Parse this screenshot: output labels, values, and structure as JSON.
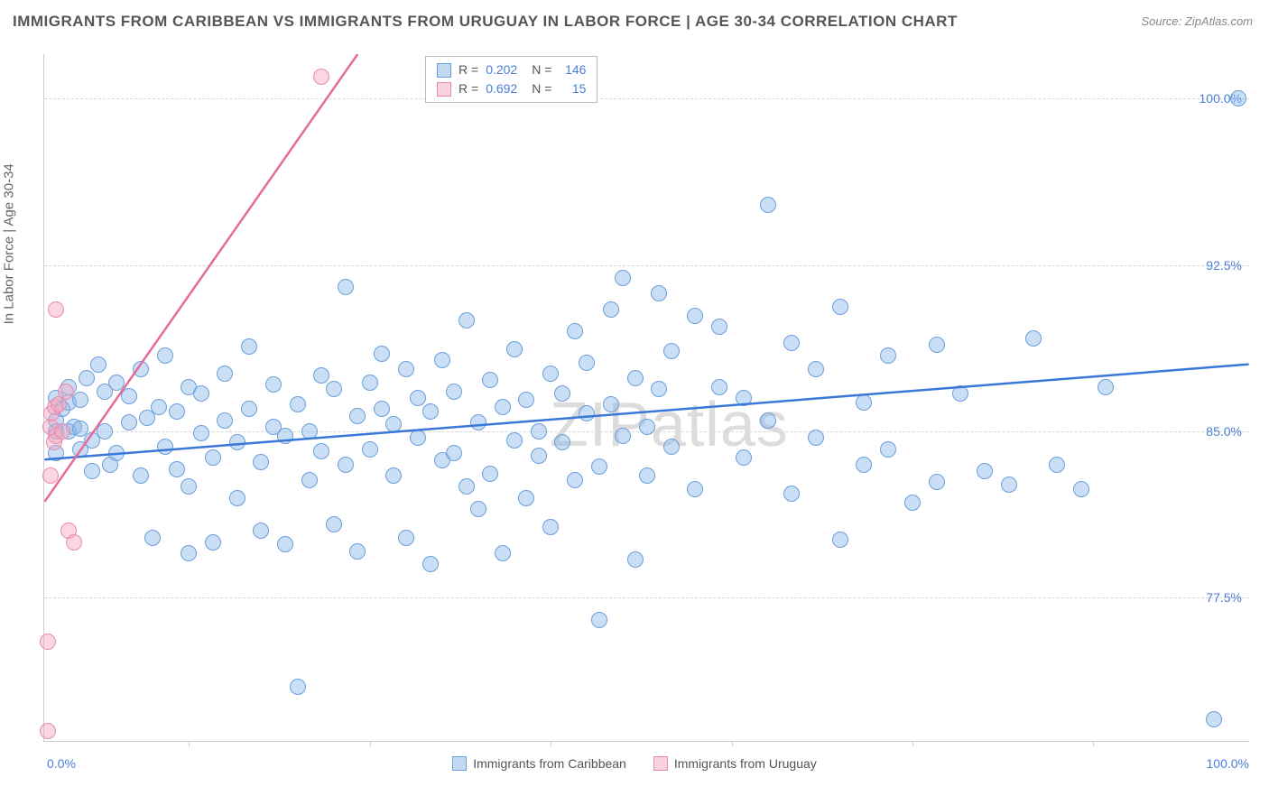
{
  "title": "IMMIGRANTS FROM CARIBBEAN VS IMMIGRANTS FROM URUGUAY IN LABOR FORCE | AGE 30-34 CORRELATION CHART",
  "source": "Source: ZipAtlas.com",
  "watermark": "ZIPatlas",
  "yaxis_label": "In Labor Force | Age 30-34",
  "chart": {
    "type": "scatter",
    "background_color": "#ffffff",
    "grid_color": "#d8d8d8",
    "text_color": "#555555",
    "value_color": "#4a7fd8",
    "xlim": [
      0,
      100
    ],
    "ylim": [
      71,
      102
    ],
    "xtick_positions": [
      12,
      27,
      42,
      57,
      72,
      87
    ],
    "xtick_labels_shown": {
      "left": "0.0%",
      "right": "100.0%"
    },
    "yticks": [
      {
        "value": 77.5,
        "label": "77.5%"
      },
      {
        "value": 85.0,
        "label": "85.0%"
      },
      {
        "value": 92.5,
        "label": "92.5%"
      },
      {
        "value": 100.0,
        "label": "100.0%"
      }
    ],
    "series": [
      {
        "name": "Immigrants from Caribbean",
        "color": "#89b5e8",
        "border_color": "#6aa0db",
        "line_color": "#3a78d8",
        "marker_size": 18,
        "R": "0.202",
        "N": "146",
        "trend": {
          "x1": 0,
          "y1": 83.7,
          "x2": 100,
          "y2": 88.0
        },
        "points": [
          [
            1,
            85.5
          ],
          [
            1,
            86.5
          ],
          [
            1,
            85
          ],
          [
            1,
            84
          ],
          [
            1.5,
            86
          ],
          [
            2,
            85
          ],
          [
            2,
            87
          ],
          [
            2,
            86.3
          ],
          [
            2.5,
            85.2
          ],
          [
            3,
            86.4
          ],
          [
            3,
            85.1
          ],
          [
            3,
            84.2
          ],
          [
            3.5,
            87.4
          ],
          [
            4,
            83.2
          ],
          [
            4,
            84.6
          ],
          [
            4.5,
            88
          ],
          [
            5,
            85
          ],
          [
            5,
            86.8
          ],
          [
            5.5,
            83.5
          ],
          [
            6,
            87.2
          ],
          [
            6,
            84
          ],
          [
            7,
            85.4
          ],
          [
            7,
            86.6
          ],
          [
            8,
            87.8
          ],
          [
            8,
            83
          ],
          [
            8.5,
            85.6
          ],
          [
            9,
            80.2
          ],
          [
            9.5,
            86.1
          ],
          [
            10,
            84.3
          ],
          [
            10,
            88.4
          ],
          [
            11,
            83.3
          ],
          [
            11,
            85.9
          ],
          [
            12,
            87
          ],
          [
            12,
            82.5
          ],
          [
            12,
            79.5
          ],
          [
            13,
            84.9
          ],
          [
            13,
            86.7
          ],
          [
            14,
            80
          ],
          [
            14,
            83.8
          ],
          [
            15,
            85.5
          ],
          [
            15,
            87.6
          ],
          [
            16,
            82
          ],
          [
            16,
            84.5
          ],
          [
            17,
            86
          ],
          [
            17,
            88.8
          ],
          [
            18,
            83.6
          ],
          [
            18,
            80.5
          ],
          [
            19,
            85.2
          ],
          [
            19,
            87.1
          ],
          [
            20,
            79.9
          ],
          [
            20,
            84.8
          ],
          [
            21,
            73.5
          ],
          [
            21,
            86.2
          ],
          [
            22,
            82.8
          ],
          [
            22,
            85
          ],
          [
            23,
            87.5
          ],
          [
            23,
            84.1
          ],
          [
            24,
            80.8
          ],
          [
            24,
            86.9
          ],
          [
            25,
            83.5
          ],
          [
            25,
            91.5
          ],
          [
            26,
            85.7
          ],
          [
            26,
            79.6
          ],
          [
            27,
            84.2
          ],
          [
            27,
            87.2
          ],
          [
            28,
            86
          ],
          [
            28,
            88.5
          ],
          [
            29,
            83
          ],
          [
            29,
            85.3
          ],
          [
            30,
            80.2
          ],
          [
            30,
            87.8
          ],
          [
            31,
            84.7
          ],
          [
            31,
            86.5
          ],
          [
            32,
            79
          ],
          [
            32,
            85.9
          ],
          [
            33,
            83.7
          ],
          [
            33,
            88.2
          ],
          [
            34,
            86.8
          ],
          [
            34,
            84
          ],
          [
            35,
            90
          ],
          [
            35,
            82.5
          ],
          [
            36,
            85.4
          ],
          [
            36,
            81.5
          ],
          [
            37,
            87.3
          ],
          [
            37,
            83.1
          ],
          [
            38,
            86.1
          ],
          [
            38,
            79.5
          ],
          [
            39,
            84.6
          ],
          [
            39,
            88.7
          ],
          [
            40,
            86.4
          ],
          [
            40,
            82
          ],
          [
            41,
            85
          ],
          [
            41,
            83.9
          ],
          [
            42,
            87.6
          ],
          [
            42,
            80.7
          ],
          [
            43,
            86.7
          ],
          [
            43,
            84.5
          ],
          [
            44,
            89.5
          ],
          [
            44,
            82.8
          ],
          [
            45,
            85.8
          ],
          [
            45,
            88.1
          ],
          [
            46,
            76.5
          ],
          [
            46,
            83.4
          ],
          [
            47,
            90.5
          ],
          [
            47,
            86.2
          ],
          [
            48,
            91.9
          ],
          [
            48,
            84.8
          ],
          [
            49,
            79.2
          ],
          [
            49,
            87.4
          ],
          [
            50,
            85.2
          ],
          [
            50,
            83
          ],
          [
            51,
            91.2
          ],
          [
            51,
            86.9
          ],
          [
            52,
            84.3
          ],
          [
            52,
            88.6
          ],
          [
            54,
            82.4
          ],
          [
            54,
            90.2
          ],
          [
            56,
            87
          ],
          [
            56,
            89.7
          ],
          [
            58,
            83.8
          ],
          [
            58,
            86.5
          ],
          [
            60,
            95.2
          ],
          [
            60,
            85.5
          ],
          [
            62,
            89
          ],
          [
            62,
            82.2
          ],
          [
            64,
            84.7
          ],
          [
            64,
            87.8
          ],
          [
            66,
            80.1
          ],
          [
            66,
            90.6
          ],
          [
            68,
            86.3
          ],
          [
            68,
            83.5
          ],
          [
            70,
            84.2
          ],
          [
            70,
            88.4
          ],
          [
            72,
            81.8
          ],
          [
            74,
            82.7
          ],
          [
            74,
            88.9
          ],
          [
            76,
            86.7
          ],
          [
            78,
            83.2
          ],
          [
            80,
            82.6
          ],
          [
            82,
            89.2
          ],
          [
            84,
            83.5
          ],
          [
            86,
            82.4
          ],
          [
            88,
            87
          ],
          [
            97,
            72
          ],
          [
            99,
            100
          ]
        ]
      },
      {
        "name": "Immigrants from Uruguay",
        "color": "#f4a6bf",
        "border_color": "#e88bb0",
        "line_color": "#e56b98",
        "marker_size": 18,
        "R": "0.692",
        "N": "15",
        "trend": {
          "x1": 0,
          "y1": 81.8,
          "x2": 26,
          "y2": 102
        },
        "points": [
          [
            0.5,
            85.2
          ],
          [
            0.6,
            85.8
          ],
          [
            0.8,
            84.5
          ],
          [
            0.9,
            86.1
          ],
          [
            1,
            84.8
          ],
          [
            1.2,
            86.2
          ],
          [
            1.5,
            85
          ],
          [
            1.8,
            86.8
          ],
          [
            0.5,
            83
          ],
          [
            1,
            90.5
          ],
          [
            2,
            80.5
          ],
          [
            2.5,
            80
          ],
          [
            0.3,
            75.5
          ],
          [
            0.3,
            71.5
          ],
          [
            23,
            101
          ]
        ]
      }
    ]
  },
  "legend_top": {
    "r_label": "R =",
    "n_label": "N ="
  },
  "legend_bottom": [
    {
      "swatch": "b",
      "label": "Immigrants from Caribbean"
    },
    {
      "swatch": "p",
      "label": "Immigrants from Uruguay"
    }
  ]
}
